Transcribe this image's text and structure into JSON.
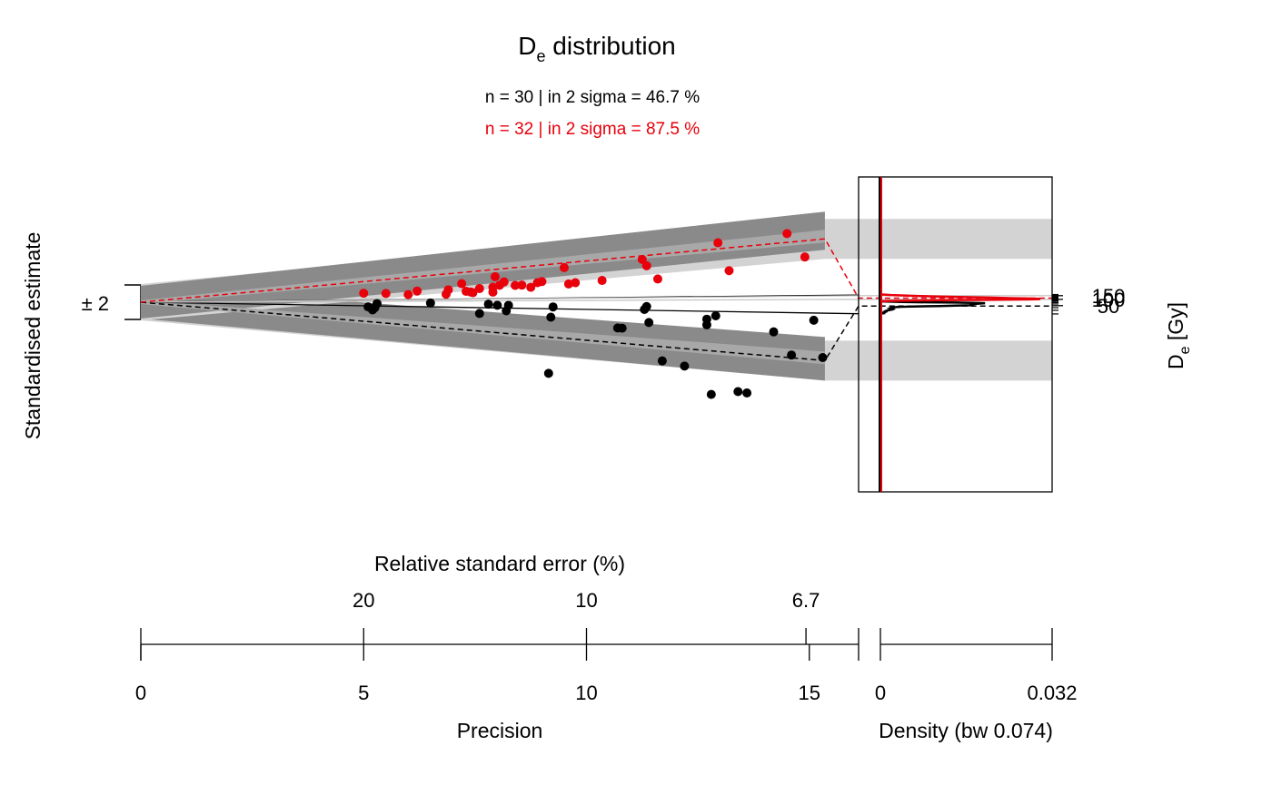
{
  "chart_data": {
    "type": "scatter",
    "title_main": "D",
    "title_sub": "e",
    "title_rest": " distribution",
    "stats": [
      {
        "text": "n = 30 | in 2 sigma = 46.7 %",
        "color": "#000000"
      },
      {
        "text": "n = 32 | in 2 sigma = 87.5 %",
        "color": "#e8000b"
      }
    ],
    "ylabel_left": "Standardised estimate",
    "z_band_label": "± 2",
    "ylabel_right_main": "D",
    "ylabel_right_sub": "e",
    "ylabel_right_rest": " [Gy]",
    "xlabel_top": "Relative standard error (%)",
    "xlabel_bottom": "Precision",
    "xlabel_density": "Density (bw 0.074)",
    "precision_ticks": [
      "0",
      "5",
      "10",
      "15"
    ],
    "rse_ticks": [
      "20",
      "10",
      "6.7"
    ],
    "density_ticks": [
      "0",
      "0.032"
    ],
    "de_ticks": [
      "50",
      "100",
      "150"
    ],
    "precision_range": [
      0,
      16
    ],
    "density_range": [
      0,
      0.032
    ],
    "central_value": 73,
    "colors": {
      "series1": "#000000",
      "series2": "#e8000b",
      "band_dark": "#8a8a8a",
      "band_light": "#d3d3d3",
      "ref_line": "#bfbfbf"
    },
    "series": [
      {
        "color": "#000000",
        "central_de": 48,
        "points": [
          [
            5.1,
            66
          ],
          [
            5.2,
            62
          ],
          [
            5.3,
            71
          ],
          [
            5.25,
            65
          ],
          [
            6.5,
            72
          ],
          [
            7.6,
            62
          ],
          [
            7.8,
            71
          ],
          [
            8,
            70
          ],
          [
            8.2,
            65
          ],
          [
            8.25,
            70
          ],
          [
            9.15,
            31
          ],
          [
            9.2,
            61
          ],
          [
            9.25,
            69
          ],
          [
            10.7,
            56
          ],
          [
            10.8,
            56
          ],
          [
            11.3,
            68
          ],
          [
            11.35,
            70
          ],
          [
            11.4,
            60
          ],
          [
            11.7,
            42
          ],
          [
            12.2,
            41
          ],
          [
            12.7,
            63
          ],
          [
            12.7,
            60
          ],
          [
            12.8,
            33
          ],
          [
            12.9,
            65
          ],
          [
            13.4,
            35
          ],
          [
            13.6,
            35
          ],
          [
            14.2,
            58
          ],
          [
            14.6,
            49
          ],
          [
            15.1,
            64
          ],
          [
            15.3,
            49
          ]
        ]
      },
      {
        "color": "#e8000b",
        "central_de": 115,
        "points": [
          [
            5,
            89
          ],
          [
            5.5,
            87
          ],
          [
            6,
            84
          ],
          [
            6.2,
            89
          ],
          [
            6.85,
            83
          ],
          [
            6.9,
            89
          ],
          [
            7.2,
            97
          ],
          [
            7.3,
            86
          ],
          [
            7.45,
            84
          ],
          [
            7.4,
            85
          ],
          [
            7.6,
            89
          ],
          [
            7.9,
            84
          ],
          [
            7.9,
            90
          ],
          [
            7.95,
            104
          ],
          [
            8.05,
            92
          ],
          [
            8.15,
            96
          ],
          [
            8.4,
            91
          ],
          [
            8.55,
            91
          ],
          [
            8.75,
            88
          ],
          [
            8.9,
            93
          ],
          [
            9,
            94
          ],
          [
            9.5,
            109
          ],
          [
            9.6,
            90
          ],
          [
            9.75,
            91
          ],
          [
            10.35,
            92
          ],
          [
            11.25,
            111
          ],
          [
            11.35,
            104
          ],
          [
            11.6,
            91
          ],
          [
            12.95,
            121
          ],
          [
            13.2,
            95
          ],
          [
            14.5,
            123
          ],
          [
            14.9,
            102
          ]
        ]
      }
    ],
    "density_curves": [
      {
        "color": "#000000",
        "points": [
          [
            80,
            0.0003
          ],
          [
            75,
            0.004
          ],
          [
            72,
            0.009
          ],
          [
            70,
            0.014
          ],
          [
            67,
            0.018
          ],
          [
            65,
            0.0195
          ],
          [
            63,
            0.0185
          ],
          [
            60,
            0.0172
          ],
          [
            58,
            0.0166
          ],
          [
            56,
            0.017
          ],
          [
            54,
            0.0175
          ],
          [
            52,
            0.0166
          ],
          [
            50,
            0.014
          ],
          [
            48,
            0.011
          ],
          [
            46,
            0.007
          ],
          [
            44,
            0.004
          ],
          [
            42,
            0.0025
          ],
          [
            40,
            0.002
          ],
          [
            38,
            0.0018
          ],
          [
            36,
            0.0022
          ],
          [
            34,
            0.0024
          ],
          [
            33,
            0.0023
          ],
          [
            31,
            0.0018
          ],
          [
            29,
            0.0012
          ],
          [
            27,
            0.0009
          ],
          [
            25.5,
            0.001
          ],
          [
            24.5,
            0.0008
          ],
          [
            23,
            0.0004
          ],
          [
            22,
            0.0009
          ],
          [
            21.2,
            0.0003
          ],
          [
            20.5,
            0.0002
          ]
        ]
      },
      {
        "color": "#e8000b",
        "points": [
          [
            170,
            0.0003
          ],
          [
            160,
            0.002
          ],
          [
            150,
            0.005
          ],
          [
            140,
            0.009
          ],
          [
            130,
            0.0145
          ],
          [
            125,
            0.018
          ],
          [
            120,
            0.021
          ],
          [
            115,
            0.024
          ],
          [
            110,
            0.0275
          ],
          [
            106,
            0.0295
          ],
          [
            103,
            0.0298
          ],
          [
            100,
            0.028
          ],
          [
            97,
            0.024
          ],
          [
            94,
            0.018
          ],
          [
            91,
            0.011
          ],
          [
            88,
            0.006
          ],
          [
            85,
            0.0025
          ],
          [
            83,
            0.001
          ],
          [
            81,
            0.0003
          ],
          [
            79,
            0.0001
          ]
        ]
      }
    ]
  }
}
